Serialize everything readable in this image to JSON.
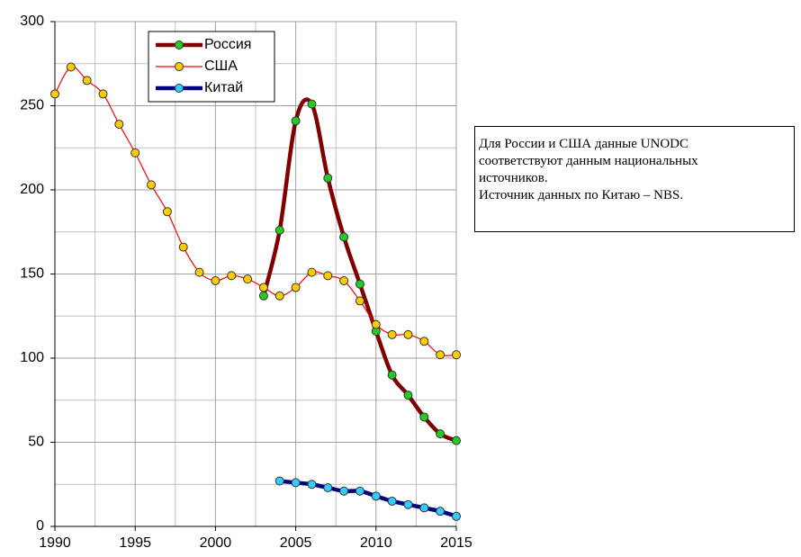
{
  "chart_data": {
    "type": "line",
    "x": [
      1990,
      1991,
      1992,
      1993,
      1994,
      1995,
      1996,
      1997,
      1998,
      1999,
      2000,
      2001,
      2002,
      2003,
      2004,
      2005,
      2006,
      2007,
      2008,
      2009,
      2010,
      2011,
      2012,
      2013,
      2014,
      2015
    ],
    "series": [
      {
        "name": "Россия",
        "color": "#800000",
        "marker_color": "#22cc22",
        "values": [
          null,
          null,
          null,
          null,
          null,
          null,
          null,
          null,
          null,
          null,
          null,
          null,
          null,
          137,
          176,
          241,
          251,
          207,
          172,
          144,
          116,
          90,
          78,
          65,
          55,
          51
        ]
      },
      {
        "name": "США",
        "color": "#ff0000",
        "marker_color": "#ffcc00",
        "values": [
          257,
          273,
          265,
          257,
          239,
          222,
          203,
          187,
          166,
          151,
          146,
          149,
          147,
          142,
          137,
          142,
          151,
          149,
          146,
          134,
          120,
          114,
          114,
          110,
          102,
          102
        ]
      },
      {
        "name": "Китай",
        "color": "#000080",
        "marker_color": "#33ccff",
        "values": [
          null,
          null,
          null,
          null,
          null,
          null,
          null,
          null,
          null,
          null,
          null,
          null,
          null,
          null,
          27,
          26,
          25,
          23,
          21,
          21,
          18,
          15,
          13,
          11,
          9,
          6
        ]
      }
    ],
    "xlim": [
      1990,
      2015
    ],
    "xticks": [
      1990,
      1995,
      2000,
      2005,
      2010,
      2015
    ],
    "ylim": [
      0,
      300
    ],
    "yticks": [
      0,
      50,
      100,
      150,
      200,
      250,
      300
    ],
    "grid": true,
    "legend": "upper left",
    "note": [
      "Для России и США данные UNODC",
      "соответствуют данным национальных",
      "источников.",
      "Источник данных по Китаю – NBS."
    ]
  }
}
